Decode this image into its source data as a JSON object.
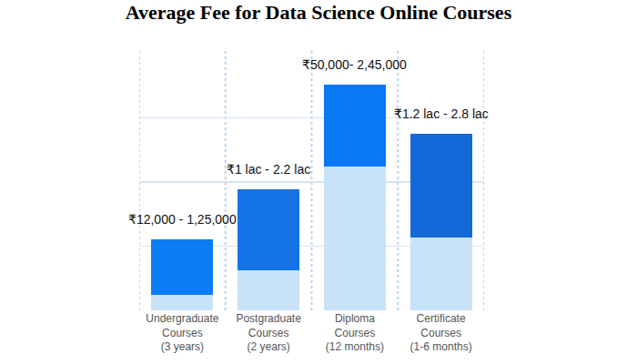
{
  "chart_data": {
    "type": "bar",
    "title": "Average Fee for Data Science Online Courses",
    "categories": [
      "Undergraduate\nCourses\n(3 years)",
      "Postgraduate\nCourses\n(2 years)",
      "Diploma\nCourses\n(12 months)",
      "Certificate\nCourses\n(1-6 months)"
    ],
    "series": [
      {
        "color": "#c8e2f8",
        "values": [
          0.24,
          0.62,
          2.24,
          1.13
        ]
      },
      {
        "colors": [
          "#0b7cf4",
          "#1473e6",
          "#0a78f5",
          "#1369d8"
        ],
        "values": [
          0.86,
          1.27,
          1.28,
          1.62
        ]
      }
    ],
    "stacked": true,
    "annotations": [
      "₹12,000 - 1,25,000",
      "₹1 lac - 2.2 lac",
      "₹50,000- 2,45,000",
      "₹1.2 lac - 2.8 lac"
    ],
    "ylim": [
      0,
      4
    ],
    "yticks": [
      0,
      1,
      2,
      3,
      4
    ],
    "grid": true,
    "tick_labels": "x"
  }
}
